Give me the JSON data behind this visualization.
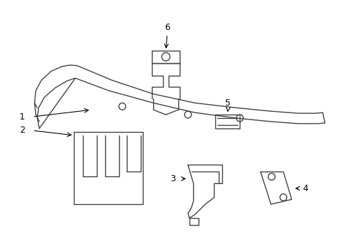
{
  "background_color": "#ffffff",
  "line_color": "#404040",
  "label_color": "#000000",
  "figsize": [
    4.89,
    3.6
  ],
  "dpi": 100
}
